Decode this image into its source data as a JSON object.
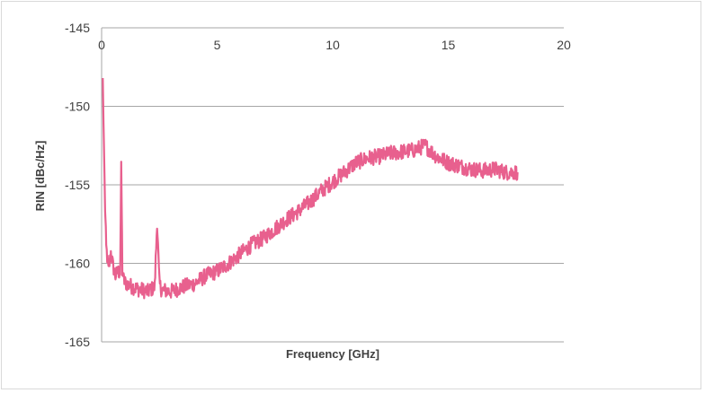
{
  "chart_data": {
    "type": "line",
    "title": "",
    "xlabel": "Frequency [GHz]",
    "ylabel": "RIN [dBc/Hz]",
    "xlim": [
      0,
      20
    ],
    "ylim": [
      -165,
      -145
    ],
    "x_ticks": [
      "0",
      "5",
      "10",
      "15",
      "20"
    ],
    "y_ticks": [
      "-145",
      "-150",
      "-155",
      "-160",
      "-165"
    ],
    "x_axis_position": "top",
    "grid": "horizontal",
    "legend": "none",
    "series": [
      {
        "color": "#e8608e",
        "x": [
          0.05,
          0.1,
          0.15,
          0.2,
          0.3,
          0.4,
          0.5,
          0.6,
          0.7,
          0.8,
          0.85,
          0.9,
          0.95,
          1.0,
          1.2,
          1.5,
          2.0,
          2.3,
          2.4,
          2.5,
          2.6,
          3.0,
          3.5,
          4.0,
          4.5,
          5.0,
          5.5,
          6.0,
          6.5,
          7.0,
          7.5,
          8.0,
          8.5,
          9.0,
          9.5,
          10.0,
          10.5,
          11.0,
          11.5,
          12.0,
          12.5,
          13.0,
          13.5,
          14.0,
          14.5,
          15.0,
          15.5,
          16.0,
          16.5,
          17.0,
          17.5,
          18.0
        ],
        "y": [
          -148.2,
          -152.5,
          -156.5,
          -159.0,
          -160.5,
          -159.3,
          -160.2,
          -160.8,
          -160.5,
          -160.6,
          -154.0,
          -160.5,
          -161.0,
          -161.2,
          -161.4,
          -161.6,
          -161.8,
          -161.5,
          -157.3,
          -161.3,
          -161.7,
          -161.8,
          -161.5,
          -161.3,
          -160.8,
          -160.5,
          -160.0,
          -159.4,
          -158.8,
          -158.4,
          -157.8,
          -157.2,
          -156.7,
          -156.1,
          -155.4,
          -154.8,
          -154.2,
          -153.6,
          -153.3,
          -153.2,
          -153.0,
          -152.9,
          -152.8,
          -152.5,
          -153.2,
          -153.6,
          -153.8,
          -154.0,
          -154.1,
          -154.0,
          -154.2,
          -154.2
        ]
      }
    ]
  }
}
